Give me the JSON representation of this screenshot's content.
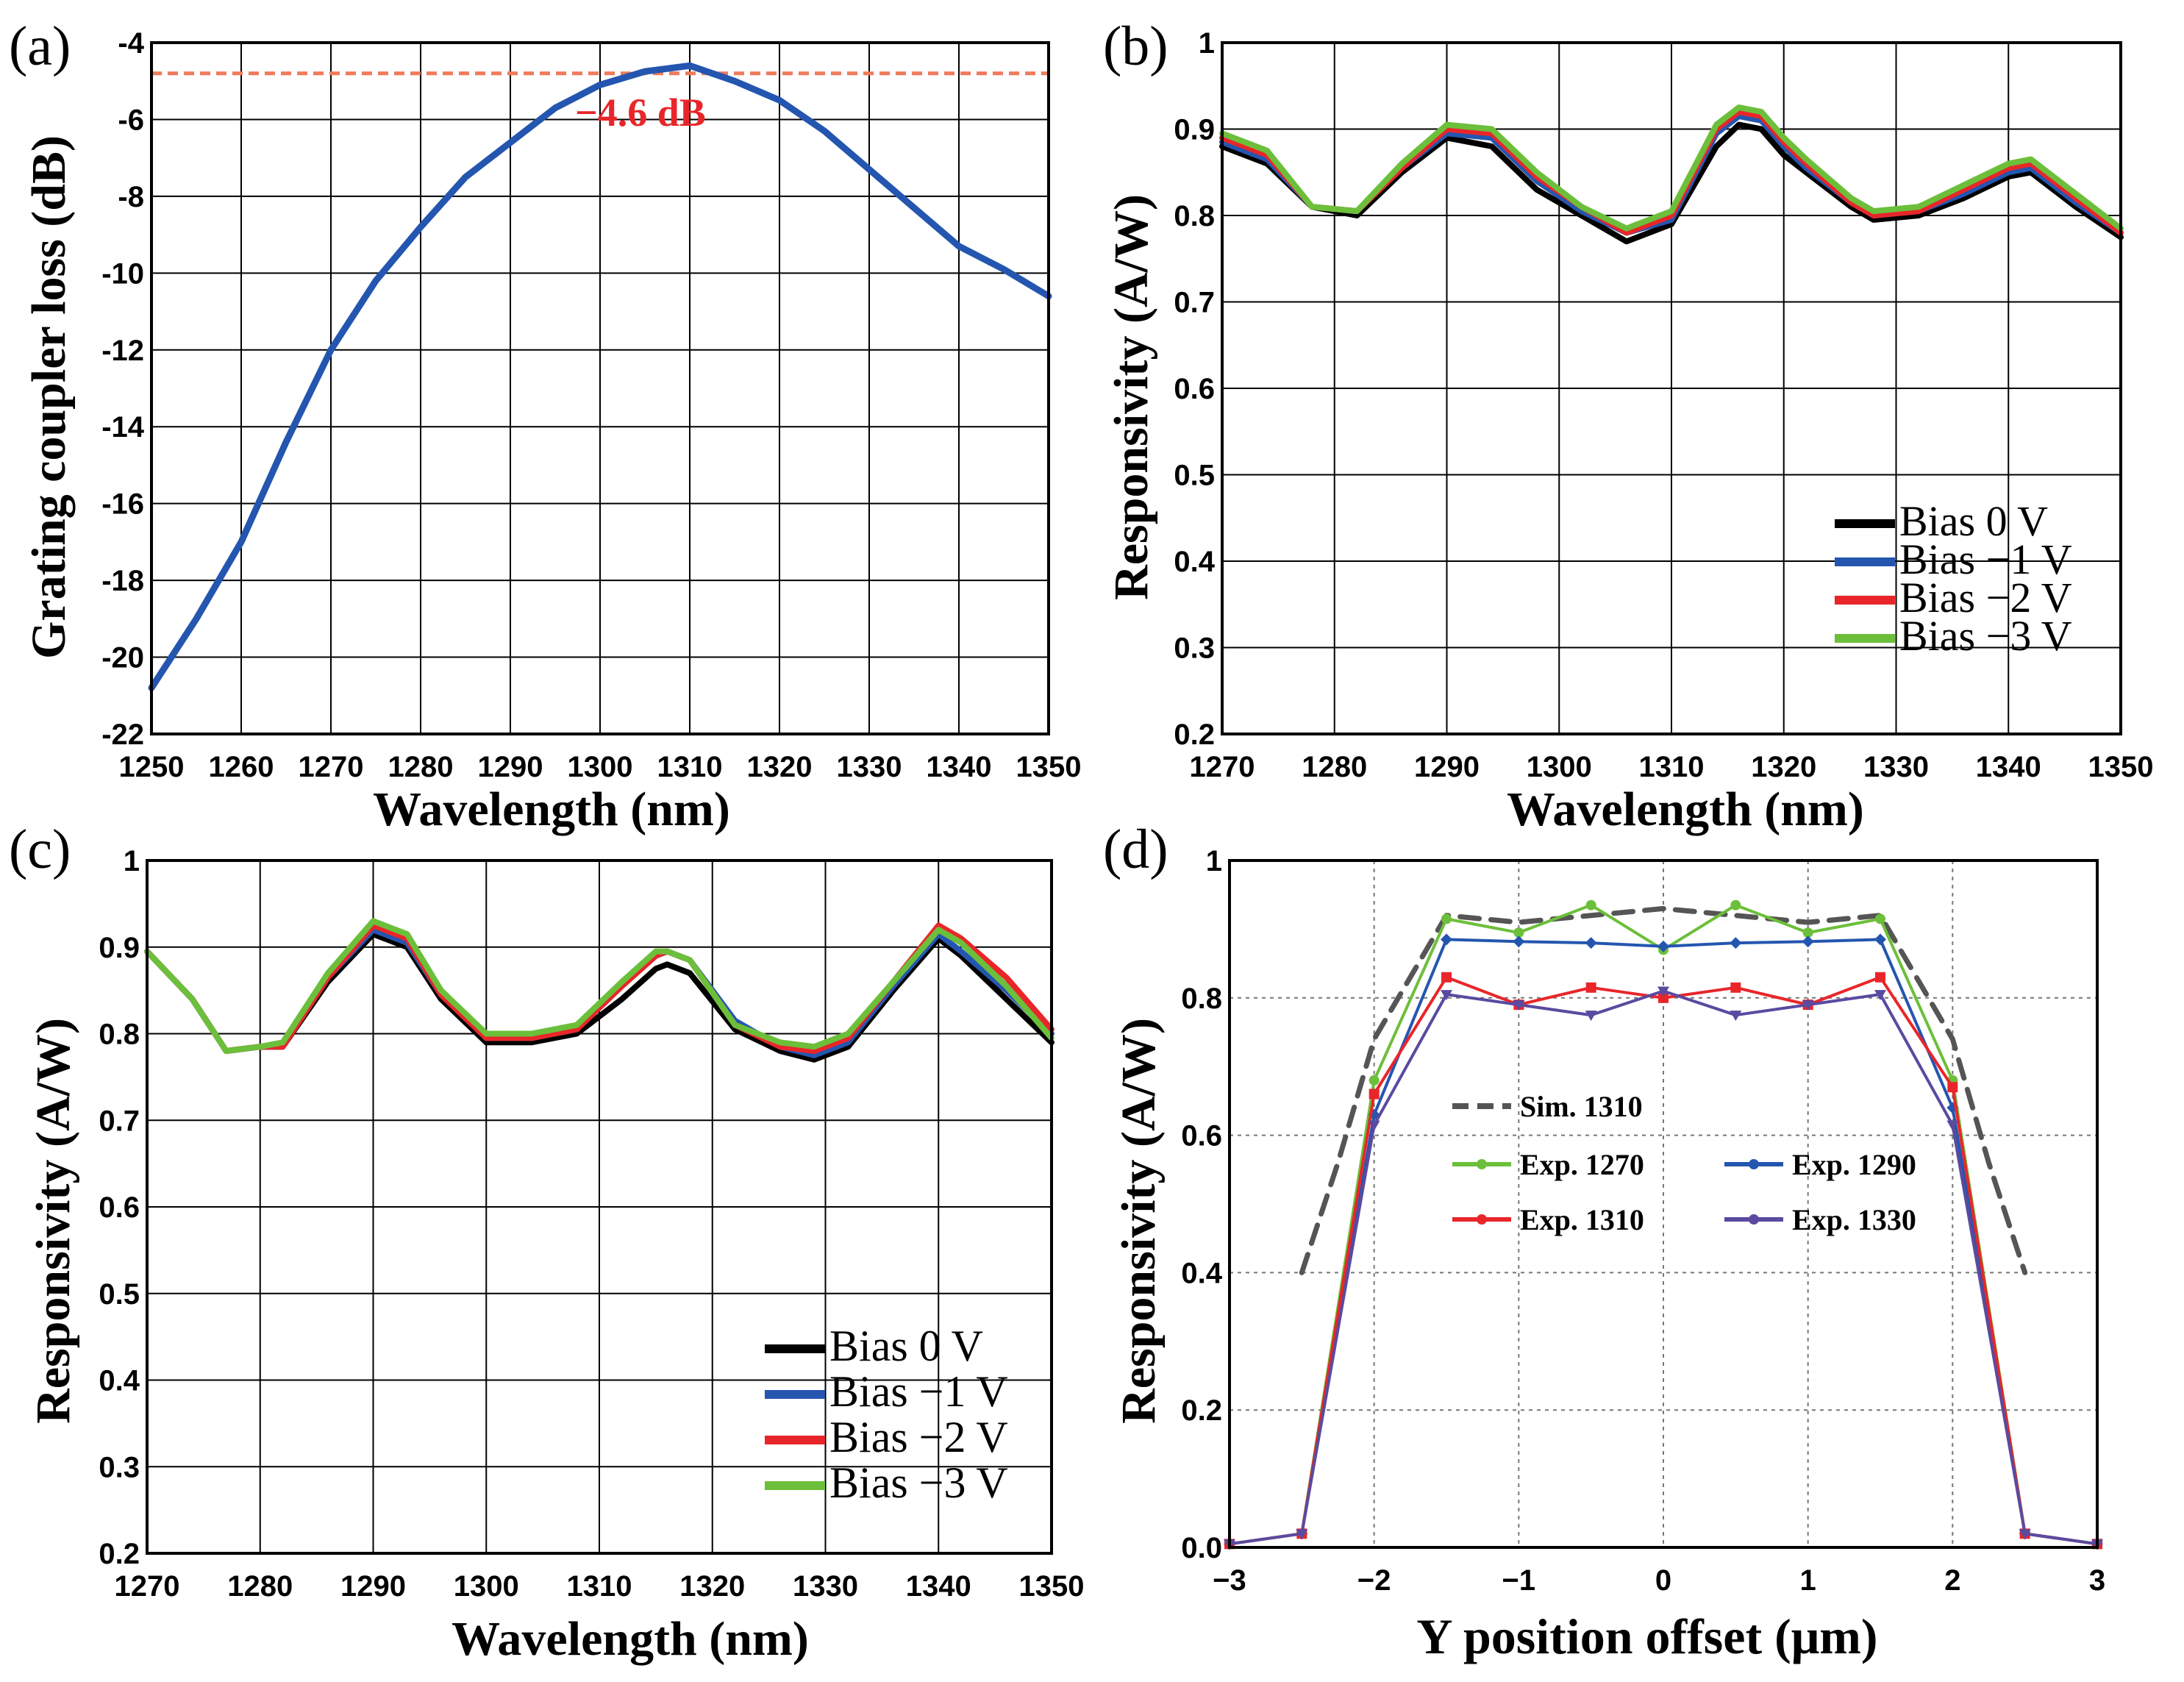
{
  "chart_data": [
    {
      "panel": "a",
      "type": "line",
      "panel_label": "(a)",
      "xlabel": "Wavelength (nm)",
      "ylabel": "Grating coupler loss (dB)",
      "xlim": [
        1250,
        1350
      ],
      "ylim": [
        -22,
        -4
      ],
      "xticks": [
        "1250",
        "1260",
        "1270",
        "1280",
        "1290",
        "1300",
        "1310",
        "1320",
        "1330",
        "1340",
        "1350"
      ],
      "yticks": [
        "-22",
        "-20",
        "-18",
        "-16",
        "-14",
        "-12",
        "-10",
        "-8",
        "-6",
        "-4"
      ],
      "grid": true,
      "reference_line": {
        "y": -4.8,
        "style": "dashed",
        "color": "#f07a5a"
      },
      "annotation": {
        "text": "−4.6 dB",
        "x": 1304.5,
        "y": -5.4,
        "color": "#e8262a"
      },
      "series": [
        {
          "name": "Grating coupler loss",
          "color": "#2456b0",
          "x": [
            1250,
            1255,
            1260,
            1265,
            1270,
            1275,
            1280,
            1285,
            1290,
            1295,
            1300,
            1305,
            1310,
            1315,
            1320,
            1325,
            1330,
            1335,
            1340,
            1345,
            1350
          ],
          "y": [
            -20.8,
            -19.0,
            -17.0,
            -14.4,
            -12.0,
            -10.2,
            -8.8,
            -7.5,
            -6.6,
            -5.7,
            -5.1,
            -4.75,
            -4.6,
            -5.0,
            -5.5,
            -6.3,
            -7.3,
            -8.3,
            -9.3,
            -9.9,
            -10.6
          ]
        }
      ]
    },
    {
      "panel": "b",
      "type": "line",
      "panel_label": "(b)",
      "xlabel": "Wavelength (nm)",
      "ylabel": "Responsivity (A/W)",
      "xlim": [
        1270,
        1350
      ],
      "ylim": [
        0.2,
        1.0
      ],
      "xticks": [
        "1270",
        "1280",
        "1290",
        "1300",
        "1310",
        "1320",
        "1330",
        "1340",
        "1350"
      ],
      "yticks": [
        "0.2",
        "0.3",
        "0.4",
        "0.5",
        "0.6",
        "0.7",
        "0.8",
        "0.9",
        "1"
      ],
      "grid": true,
      "legend": [
        {
          "label": "Bias 0 V",
          "color": "#000000"
        },
        {
          "label": "Bias −1 V",
          "color": "#2456b0"
        },
        {
          "label": "Bias −2 V",
          "color": "#e8262a"
        },
        {
          "label": "Bias −3 V",
          "color": "#6cbf3a"
        }
      ],
      "x": [
        1270,
        1274,
        1278,
        1282,
        1286,
        1290,
        1294,
        1298,
        1302,
        1306,
        1310,
        1314,
        1316,
        1318,
        1320,
        1322,
        1326,
        1328,
        1332,
        1336,
        1340,
        1342,
        1346,
        1350
      ],
      "series": [
        {
          "name": "Bias 0 V",
          "color": "#000000",
          "values": [
            0.88,
            0.86,
            0.81,
            0.8,
            0.85,
            0.89,
            0.88,
            0.83,
            0.8,
            0.77,
            0.79,
            0.88,
            0.905,
            0.9,
            0.87,
            0.85,
            0.81,
            0.795,
            0.8,
            0.82,
            0.845,
            0.85,
            0.81,
            0.775
          ]
        },
        {
          "name": "Bias −1 V",
          "color": "#2456b0",
          "values": [
            0.885,
            0.865,
            0.81,
            0.805,
            0.855,
            0.895,
            0.89,
            0.84,
            0.805,
            0.78,
            0.795,
            0.895,
            0.915,
            0.91,
            0.88,
            0.855,
            0.815,
            0.8,
            0.805,
            0.825,
            0.85,
            0.855,
            0.815,
            0.78
          ]
        },
        {
          "name": "Bias −2 V",
          "color": "#e8262a",
          "values": [
            0.89,
            0.87,
            0.81,
            0.805,
            0.855,
            0.9,
            0.895,
            0.845,
            0.81,
            0.78,
            0.8,
            0.9,
            0.92,
            0.915,
            0.885,
            0.86,
            0.815,
            0.8,
            0.805,
            0.83,
            0.855,
            0.86,
            0.82,
            0.78
          ]
        },
        {
          "name": "Bias −3 V",
          "color": "#6cbf3a",
          "values": [
            0.895,
            0.875,
            0.81,
            0.805,
            0.86,
            0.905,
            0.9,
            0.85,
            0.81,
            0.785,
            0.805,
            0.905,
            0.925,
            0.92,
            0.89,
            0.865,
            0.82,
            0.805,
            0.81,
            0.835,
            0.86,
            0.865,
            0.825,
            0.785
          ]
        }
      ]
    },
    {
      "panel": "c",
      "type": "line",
      "panel_label": "(c)",
      "xlabel": "Wavelength (nm)",
      "ylabel": "Responsivity (A/W)",
      "xlim": [
        1270,
        1350
      ],
      "ylim": [
        0.2,
        1.0
      ],
      "xticks": [
        "1270",
        "1280",
        "1290",
        "1300",
        "1310",
        "1320",
        "1330",
        "1340",
        "1350"
      ],
      "yticks": [
        "0.2",
        "0.3",
        "0.4",
        "0.5",
        "0.6",
        "0.7",
        "0.8",
        "0.9",
        "1"
      ],
      "grid": true,
      "legend": [
        {
          "label": "Bias 0 V",
          "color": "#000000"
        },
        {
          "label": "Bias −1 V",
          "color": "#2456b0"
        },
        {
          "label": "Bias −2 V",
          "color": "#e8262a"
        },
        {
          "label": "Bias −3 V",
          "color": "#6cbf3a"
        }
      ],
      "x": [
        1270,
        1274,
        1277,
        1280,
        1282,
        1286,
        1290,
        1293,
        1296,
        1300,
        1304,
        1308,
        1312,
        1315,
        1316,
        1318,
        1322,
        1326,
        1329,
        1332,
        1336,
        1340,
        1342,
        1346,
        1350
      ],
      "series": [
        {
          "name": "Bias 0 V",
          "color": "#000000",
          "values": [
            0.895,
            0.84,
            0.78,
            0.785,
            0.785,
            0.86,
            0.915,
            0.9,
            0.84,
            0.79,
            0.79,
            0.8,
            0.84,
            0.875,
            0.88,
            0.87,
            0.805,
            0.78,
            0.77,
            0.785,
            0.85,
            0.91,
            0.89,
            0.84,
            0.79
          ]
        },
        {
          "name": "Bias −1 V",
          "color": "#2456b0",
          "values": [
            0.895,
            0.84,
            0.78,
            0.785,
            0.785,
            0.865,
            0.92,
            0.905,
            0.845,
            0.795,
            0.795,
            0.805,
            0.855,
            0.89,
            0.895,
            0.885,
            0.815,
            0.785,
            0.775,
            0.79,
            0.855,
            0.915,
            0.895,
            0.85,
            0.8
          ]
        },
        {
          "name": "Bias −2 V",
          "color": "#e8262a",
          "values": [
            0.895,
            0.84,
            0.78,
            0.785,
            0.785,
            0.865,
            0.925,
            0.91,
            0.845,
            0.795,
            0.795,
            0.805,
            0.855,
            0.89,
            0.895,
            0.885,
            0.81,
            0.785,
            0.78,
            0.795,
            0.86,
            0.925,
            0.91,
            0.865,
            0.805
          ]
        },
        {
          "name": "Bias −3 V",
          "color": "#6cbf3a",
          "values": [
            0.895,
            0.84,
            0.78,
            0.785,
            0.79,
            0.87,
            0.93,
            0.915,
            0.85,
            0.8,
            0.8,
            0.81,
            0.86,
            0.895,
            0.895,
            0.885,
            0.81,
            0.79,
            0.785,
            0.8,
            0.86,
            0.92,
            0.905,
            0.855,
            0.795
          ]
        }
      ]
    },
    {
      "panel": "d",
      "type": "line",
      "panel_label": "(d)",
      "xlabel": "Y position offset (μm)",
      "ylabel": "Responsivity (A/W)",
      "xlim": [
        -3,
        3
      ],
      "ylim": [
        0,
        1.0
      ],
      "xticks": [
        "−3",
        "−2",
        "−1",
        "0",
        "1",
        "2",
        "3"
      ],
      "yticks": [
        "0.0",
        "0.2",
        "0.4",
        "0.6",
        "0.8",
        "1"
      ],
      "grid": true,
      "legend": [
        {
          "label": "Sim. 1310",
          "color": "#555555"
        },
        {
          "label": "Exp. 1270",
          "color": "#6cbf3a"
        },
        {
          "label": "Exp. 1290",
          "color": "#2456b0"
        },
        {
          "label": "Exp. 1310",
          "color": "#e8262a"
        },
        {
          "label": "Exp. 1330",
          "color": "#5a4aa0"
        }
      ],
      "sim": {
        "name": "Sim. 1310",
        "color": "#555555",
        "x": [
          -2.5,
          -2.25,
          -2.0,
          -1.5,
          -1.0,
          0,
          1.0,
          1.5,
          2.0,
          2.25,
          2.5
        ],
        "y": [
          0.4,
          0.56,
          0.74,
          0.92,
          0.91,
          0.93,
          0.91,
          0.92,
          0.74,
          0.56,
          0.4
        ]
      },
      "x": [
        -3,
        -2.5,
        -2,
        -1.5,
        -1,
        -0.5,
        0,
        0.5,
        1,
        1.5,
        2,
        2.5,
        3
      ],
      "series": [
        {
          "name": "Exp. 1270",
          "color": "#6cbf3a",
          "marker": "circle",
          "values": [
            0.005,
            0.02,
            0.68,
            0.915,
            0.895,
            0.935,
            0.87,
            0.935,
            0.895,
            0.915,
            0.68,
            0.02,
            0.005
          ]
        },
        {
          "name": "Exp. 1290",
          "color": "#2456b0",
          "marker": "diamond",
          "values": [
            0.005,
            0.02,
            0.63,
            0.885,
            0.882,
            0.88,
            0.875,
            0.88,
            0.882,
            0.885,
            0.64,
            0.02,
            0.005
          ]
        },
        {
          "name": "Exp. 1310",
          "color": "#e8262a",
          "marker": "square",
          "values": [
            0.005,
            0.02,
            0.66,
            0.83,
            0.79,
            0.815,
            0.8,
            0.815,
            0.79,
            0.83,
            0.67,
            0.02,
            0.005
          ]
        },
        {
          "name": "Exp. 1330",
          "color": "#5a4aa0",
          "marker": "triangle-down",
          "values": [
            0.005,
            0.02,
            0.615,
            0.805,
            0.79,
            0.775,
            0.81,
            0.775,
            0.79,
            0.805,
            0.615,
            0.02,
            0.005
          ]
        }
      ]
    }
  ]
}
